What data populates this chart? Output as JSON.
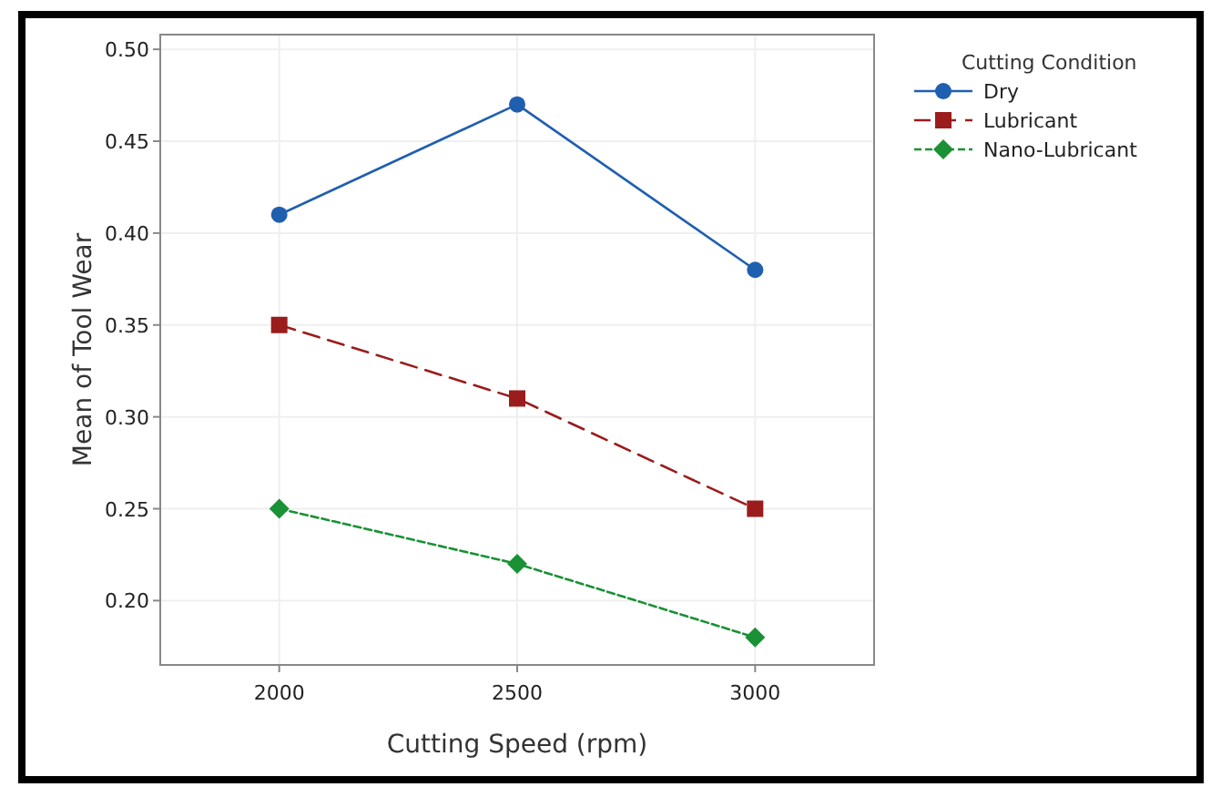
{
  "chart_data": {
    "type": "line",
    "xlabel": "Cutting Speed (rpm)",
    "ylabel": "Mean of Tool Wear",
    "legend_title": "Cutting Condition",
    "x": [
      2000,
      2500,
      3000
    ],
    "series": [
      {
        "name": "Dry",
        "color": "#1f5fb0",
        "values": [
          0.41,
          0.47,
          0.38
        ],
        "marker": "circle",
        "line_style": "solid"
      },
      {
        "name": "Lubricant",
        "color": "#9b1c1c",
        "values": [
          0.35,
          0.31,
          0.25
        ],
        "marker": "square",
        "line_style": "dashed"
      },
      {
        "name": "Nano-Lubricant",
        "color": "#1a9135",
        "values": [
          0.25,
          0.22,
          0.18
        ],
        "marker": "diamond",
        "line_style": "dotted"
      }
    ],
    "xlim": [
      1750,
      3250
    ],
    "xticks": [
      2000,
      2500,
      3000
    ],
    "ylim": [
      0.165,
      0.508
    ],
    "yticks": [
      {
        "value": 0.2,
        "label": "0.20"
      },
      {
        "value": 0.25,
        "label": "0.25"
      },
      {
        "value": 0.3,
        "label": "0.30"
      },
      {
        "value": 0.35,
        "label": "0.35"
      },
      {
        "value": 0.4,
        "label": "0.40"
      },
      {
        "value": 0.45,
        "label": "0.45"
      },
      {
        "value": 0.5,
        "label": "0.50"
      }
    ],
    "grid": true,
    "legend": "top right"
  }
}
